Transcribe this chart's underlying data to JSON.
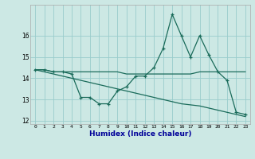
{
  "xlabel": "Humidex (Indice chaleur)",
  "x": [
    0,
    1,
    2,
    3,
    4,
    5,
    6,
    7,
    8,
    9,
    10,
    11,
    12,
    13,
    14,
    15,
    16,
    17,
    18,
    19,
    20,
    21,
    22,
    23
  ],
  "line1": [
    14.4,
    14.4,
    14.3,
    14.3,
    14.2,
    13.1,
    13.1,
    12.8,
    12.8,
    13.4,
    13.6,
    14.1,
    14.1,
    14.5,
    15.4,
    17.0,
    16.0,
    15.0,
    16.0,
    15.1,
    14.3,
    13.9,
    12.4,
    12.3
  ],
  "line2": [
    14.4,
    14.4,
    14.3,
    14.3,
    14.3,
    14.3,
    14.3,
    14.3,
    14.3,
    14.3,
    14.2,
    14.2,
    14.2,
    14.2,
    14.2,
    14.2,
    14.2,
    14.2,
    14.3,
    14.3,
    14.3,
    14.3,
    14.3,
    14.3
  ],
  "line3": [
    14.4,
    14.3,
    14.2,
    14.1,
    14.0,
    13.9,
    13.8,
    13.7,
    13.6,
    13.5,
    13.4,
    13.3,
    13.2,
    13.1,
    13.0,
    12.9,
    12.8,
    12.75,
    12.7,
    12.6,
    12.5,
    12.4,
    12.3,
    12.2
  ],
  "line_color": "#1a6b5a",
  "bg_color": "#cce8e4",
  "grid_color": "#99cccc",
  "ylim": [
    11.85,
    17.45
  ],
  "yticks": [
    12,
    13,
    14,
    15,
    16
  ],
  "xticks": [
    0,
    1,
    2,
    3,
    4,
    5,
    6,
    7,
    8,
    9,
    10,
    11,
    12,
    13,
    14,
    15,
    16,
    17,
    18,
    19,
    20,
    21,
    22,
    23
  ]
}
